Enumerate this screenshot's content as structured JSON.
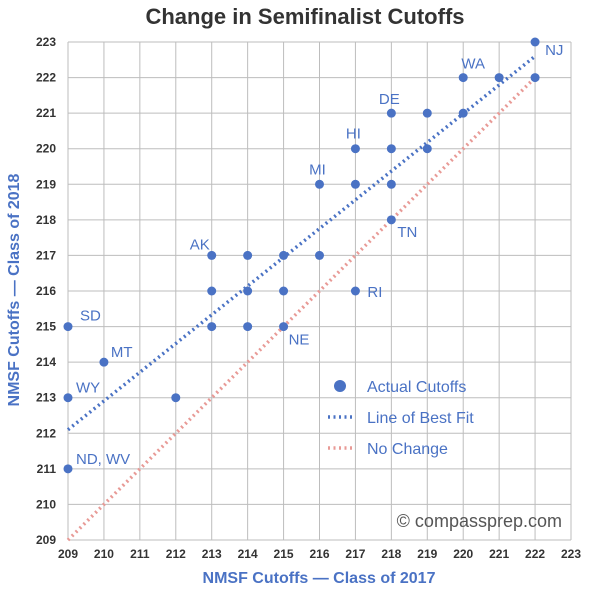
{
  "chart_data": {
    "type": "scatter",
    "title": "Change in Semifinalist Cutoffs",
    "xlabel": "NMSF Cutoffs — Class of 2017",
    "ylabel": "NMSF Cutoffs — Class of 2018",
    "xlim": [
      209,
      223
    ],
    "ylim": [
      209,
      223
    ],
    "xticks": [
      209,
      210,
      211,
      212,
      213,
      214,
      215,
      216,
      217,
      218,
      219,
      220,
      221,
      222,
      223
    ],
    "yticks": [
      209,
      210,
      211,
      212,
      213,
      214,
      215,
      216,
      217,
      218,
      219,
      220,
      221,
      222,
      223
    ],
    "grid": true,
    "legend_position": "lower-right",
    "series": [
      {
        "name": "Actual Cutoffs",
        "kind": "points",
        "color": "#4a72c4",
        "points": [
          [
            209,
            215
          ],
          [
            209,
            213
          ],
          [
            209,
            211
          ],
          [
            210,
            214
          ],
          [
            212,
            213
          ],
          [
            213,
            217
          ],
          [
            213,
            216
          ],
          [
            213,
            215
          ],
          [
            214,
            217
          ],
          [
            214,
            216
          ],
          [
            214,
            215
          ],
          [
            215,
            217
          ],
          [
            215,
            216
          ],
          [
            215,
            215
          ],
          [
            216,
            219
          ],
          [
            216,
            217
          ],
          [
            217,
            220
          ],
          [
            217,
            219
          ],
          [
            217,
            216
          ],
          [
            218,
            221
          ],
          [
            218,
            220
          ],
          [
            218,
            219
          ],
          [
            218,
            218
          ],
          [
            219,
            221
          ],
          [
            219,
            220
          ],
          [
            220,
            222
          ],
          [
            220,
            221
          ],
          [
            221,
            222
          ],
          [
            222,
            223
          ],
          [
            222,
            222
          ]
        ]
      },
      {
        "name": "Line of Best Fit",
        "kind": "dotted-line",
        "color": "#4a72c4",
        "points": [
          [
            209,
            212.1
          ],
          [
            222,
            222.6
          ]
        ]
      },
      {
        "name": "No Change",
        "kind": "dotted-line",
        "color": "#e89a96",
        "points": [
          [
            209,
            209
          ],
          [
            222,
            222
          ]
        ]
      }
    ],
    "annotations": [
      {
        "text": "SD",
        "x": 209,
        "y": 215
      },
      {
        "text": "WY",
        "x": 209,
        "y": 213
      },
      {
        "text": "ND, WV",
        "x": 209,
        "y": 211
      },
      {
        "text": "MT",
        "x": 210,
        "y": 214
      },
      {
        "text": "AK",
        "x": 213,
        "y": 217
      },
      {
        "text": "NE",
        "x": 215,
        "y": 215
      },
      {
        "text": "MI",
        "x": 216,
        "y": 219
      },
      {
        "text": "HI",
        "x": 217,
        "y": 220
      },
      {
        "text": "RI",
        "x": 217,
        "y": 216
      },
      {
        "text": "DE",
        "x": 218,
        "y": 221
      },
      {
        "text": "TN",
        "x": 218,
        "y": 218
      },
      {
        "text": "WA",
        "x": 220,
        "y": 222
      },
      {
        "text": "NJ",
        "x": 222,
        "y": 223
      }
    ],
    "watermark": "© compassprep.com"
  }
}
